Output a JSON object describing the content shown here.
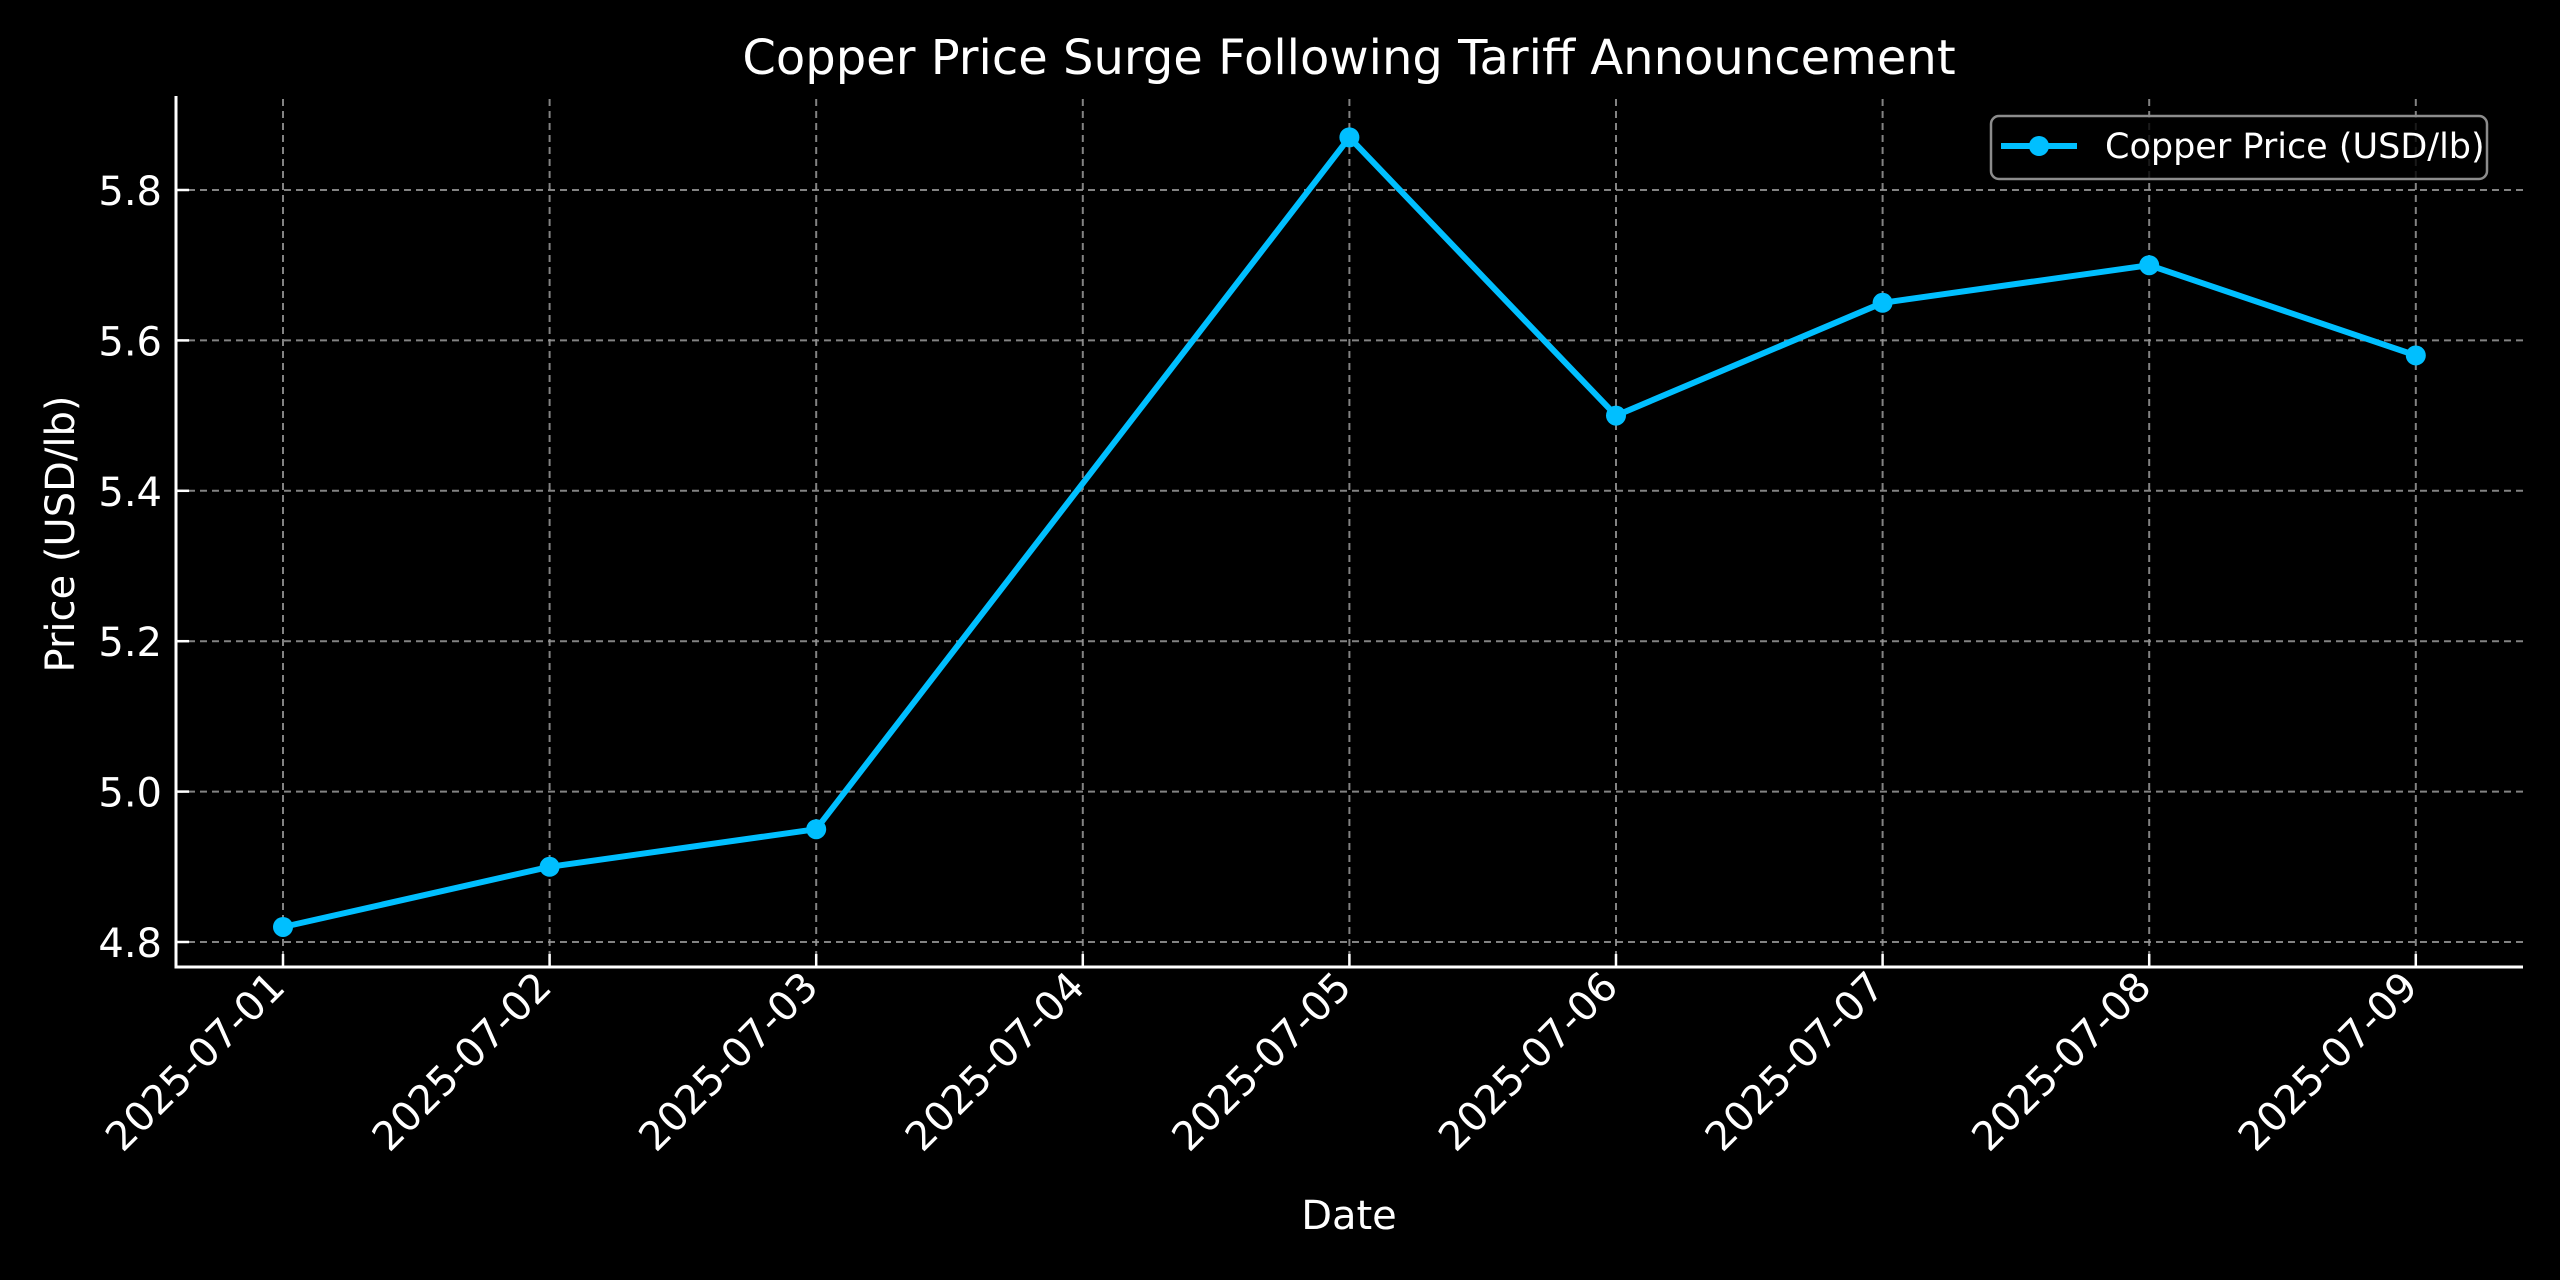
{
  "chart_data": {
    "type": "line",
    "title": "Copper Price Surge Following Tariff Announcement",
    "xlabel": "Date",
    "ylabel": "Price (USD/lb)",
    "categories": [
      "2025-07-01",
      "2025-07-02",
      "2025-07-03",
      "2025-07-04",
      "2025-07-05",
      "2025-07-06",
      "2025-07-07",
      "2025-07-08",
      "2025-07-09"
    ],
    "series": [
      {
        "name": "Copper Price (USD/lb)",
        "color": "#00BFFF",
        "marker": "circle",
        "points": [
          {
            "x": "2025-07-01",
            "y": 4.82
          },
          {
            "x": "2025-07-02",
            "y": 4.9
          },
          {
            "x": "2025-07-03",
            "y": 4.95
          },
          {
            "x": "2025-07-05",
            "y": 5.87
          },
          {
            "x": "2025-07-06",
            "y": 5.5
          },
          {
            "x": "2025-07-07",
            "y": 5.65
          },
          {
            "x": "2025-07-08",
            "y": 5.7
          },
          {
            "x": "2025-07-09",
            "y": 5.58
          }
        ]
      }
    ],
    "yticks": [
      4.8,
      5.0,
      5.2,
      5.4,
      5.6,
      5.8
    ],
    "ytick_labels": [
      "4.8",
      "5.0",
      "5.2",
      "5.4",
      "5.6",
      "5.8"
    ],
    "ylim": [
      4.767,
      5.953
    ],
    "grid": true,
    "legend_position": "upper right",
    "background": "#000000",
    "text_color": "#FFFFFF"
  }
}
